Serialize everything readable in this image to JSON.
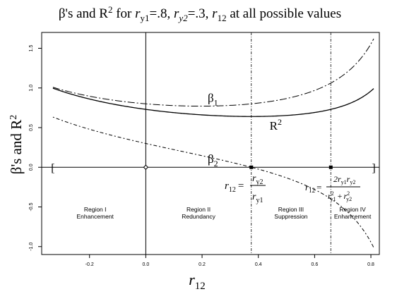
{
  "chart_data": {
    "type": "line",
    "title": {
      "prefix": "β's and R",
      "sup": "2",
      "mid1": " for ",
      "ry1_r": "r",
      "ry1_sub": "y1",
      "ry1_val": "=.8, ",
      "ry2_r": "r",
      "ry2_sub": "y2",
      "ry2_val": "=.3, ",
      "r12_r": "r",
      "r12_sub": "12",
      "suffix": " at all possible values"
    },
    "xlabel": {
      "r": "r",
      "sub": "12"
    },
    "ylabel": {
      "main": "β's and R",
      "sup": "2"
    },
    "xlim": [
      -0.37,
      0.83
    ],
    "ylim": [
      -1.1,
      1.7
    ],
    "x_ticks": [
      -0.2,
      0.0,
      0.2,
      0.4,
      0.6,
      0.8
    ],
    "x_tick_labels": [
      "-0.2",
      "0.0",
      "0.2",
      "0.4",
      "0.6",
      "0.8"
    ],
    "y_ticks": [
      -1.0,
      -0.5,
      0.0,
      0.5,
      1.0,
      1.5
    ],
    "y_tick_labels": [
      "-1.0",
      "-0.5",
      "0.0",
      "0.5",
      "1.0",
      "1.5"
    ],
    "ry1": 0.8,
    "ry2": 0.3,
    "x_range": [
      -0.33,
      0.81
    ],
    "series": [
      {
        "key": "beta1",
        "label_main": "β",
        "label_sub": "1",
        "label_at": 0.2,
        "style": "dashdot-long"
      },
      {
        "key": "r2",
        "label_main": "R",
        "label_sup": "2",
        "label_at": 0.42,
        "style": "solid"
      },
      {
        "key": "beta2",
        "label_main": "β",
        "label_sub": "2",
        "label_at": 0.2,
        "style": "dotdash"
      }
    ],
    "vlines": [
      {
        "x": 0.0,
        "style": "solid"
      },
      {
        "x": 0.375,
        "style": "dotted"
      },
      {
        "x": 0.6575,
        "style": "dotted"
      }
    ],
    "markers": [
      {
        "x": 0.0,
        "y": 0.0,
        "shape": "diamond"
      },
      {
        "x": 0.375,
        "y": 0.0,
        "shape": "square"
      },
      {
        "x": 0.6575,
        "y": 0.0,
        "shape": "square"
      }
    ],
    "brackets": {
      "left": "[",
      "right": "]",
      "left_x": -0.33,
      "right_x": 0.81
    },
    "regions": [
      {
        "line1": "Region I",
        "line2": "Enhancement",
        "x": -0.18
      },
      {
        "line1": "Region II",
        "line2": "Redundancy",
        "x": 0.1875
      },
      {
        "line1": "Region III",
        "line2": "Suppression",
        "x": 0.516
      },
      {
        "line1": "Region IV",
        "line2": "Enhancement",
        "x": 0.735
      }
    ],
    "formula1": {
      "lhs_r": "r",
      "lhs_sub": "12",
      "eq": "=",
      "num_r": "r",
      "num_sub": "y2",
      "den_r": "r",
      "den_sub": "y1"
    },
    "formula2": {
      "lhs_r": "r",
      "lhs_sub": "12",
      "eq": "=",
      "num": "2r",
      "num_sub1": "y1",
      "num_r2": "r",
      "num_sub2": "y2",
      "den_r1": "r",
      "den_sub1": "y1",
      "den_sup1": "2",
      "plus": "+",
      "den_r2": "r",
      "den_sub2": "y2",
      "den_sup2": "2"
    }
  }
}
